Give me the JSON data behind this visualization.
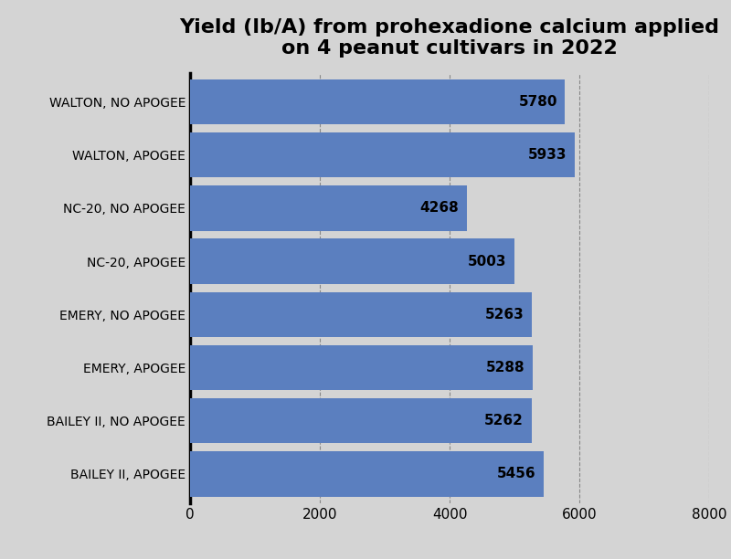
{
  "title": "Yield (lb/A) from prohexadione calcium applied\non 4 peanut cultivars in 2022",
  "categories": [
    "BAILEY II, APOGEE",
    "BAILEY II, NO APOGEE",
    "EMERY, APOGEE",
    "EMERY, NO APOGEE",
    "NC-20, APOGEE",
    "NC-20, NO APOGEE",
    "WALTON, APOGEE",
    "WALTON, NO APOGEE"
  ],
  "values": [
    5456,
    5262,
    5288,
    5263,
    5003,
    4268,
    5933,
    5780
  ],
  "bar_color": "#5B7FBF",
  "background_color": "#D4D4D4",
  "xlim": [
    0,
    8000
  ],
  "xticks": [
    0,
    2000,
    4000,
    6000,
    8000
  ],
  "title_fontsize": 16,
  "label_fontsize": 11,
  "value_fontsize": 11,
  "tick_fontsize": 11,
  "bar_height": 0.85
}
